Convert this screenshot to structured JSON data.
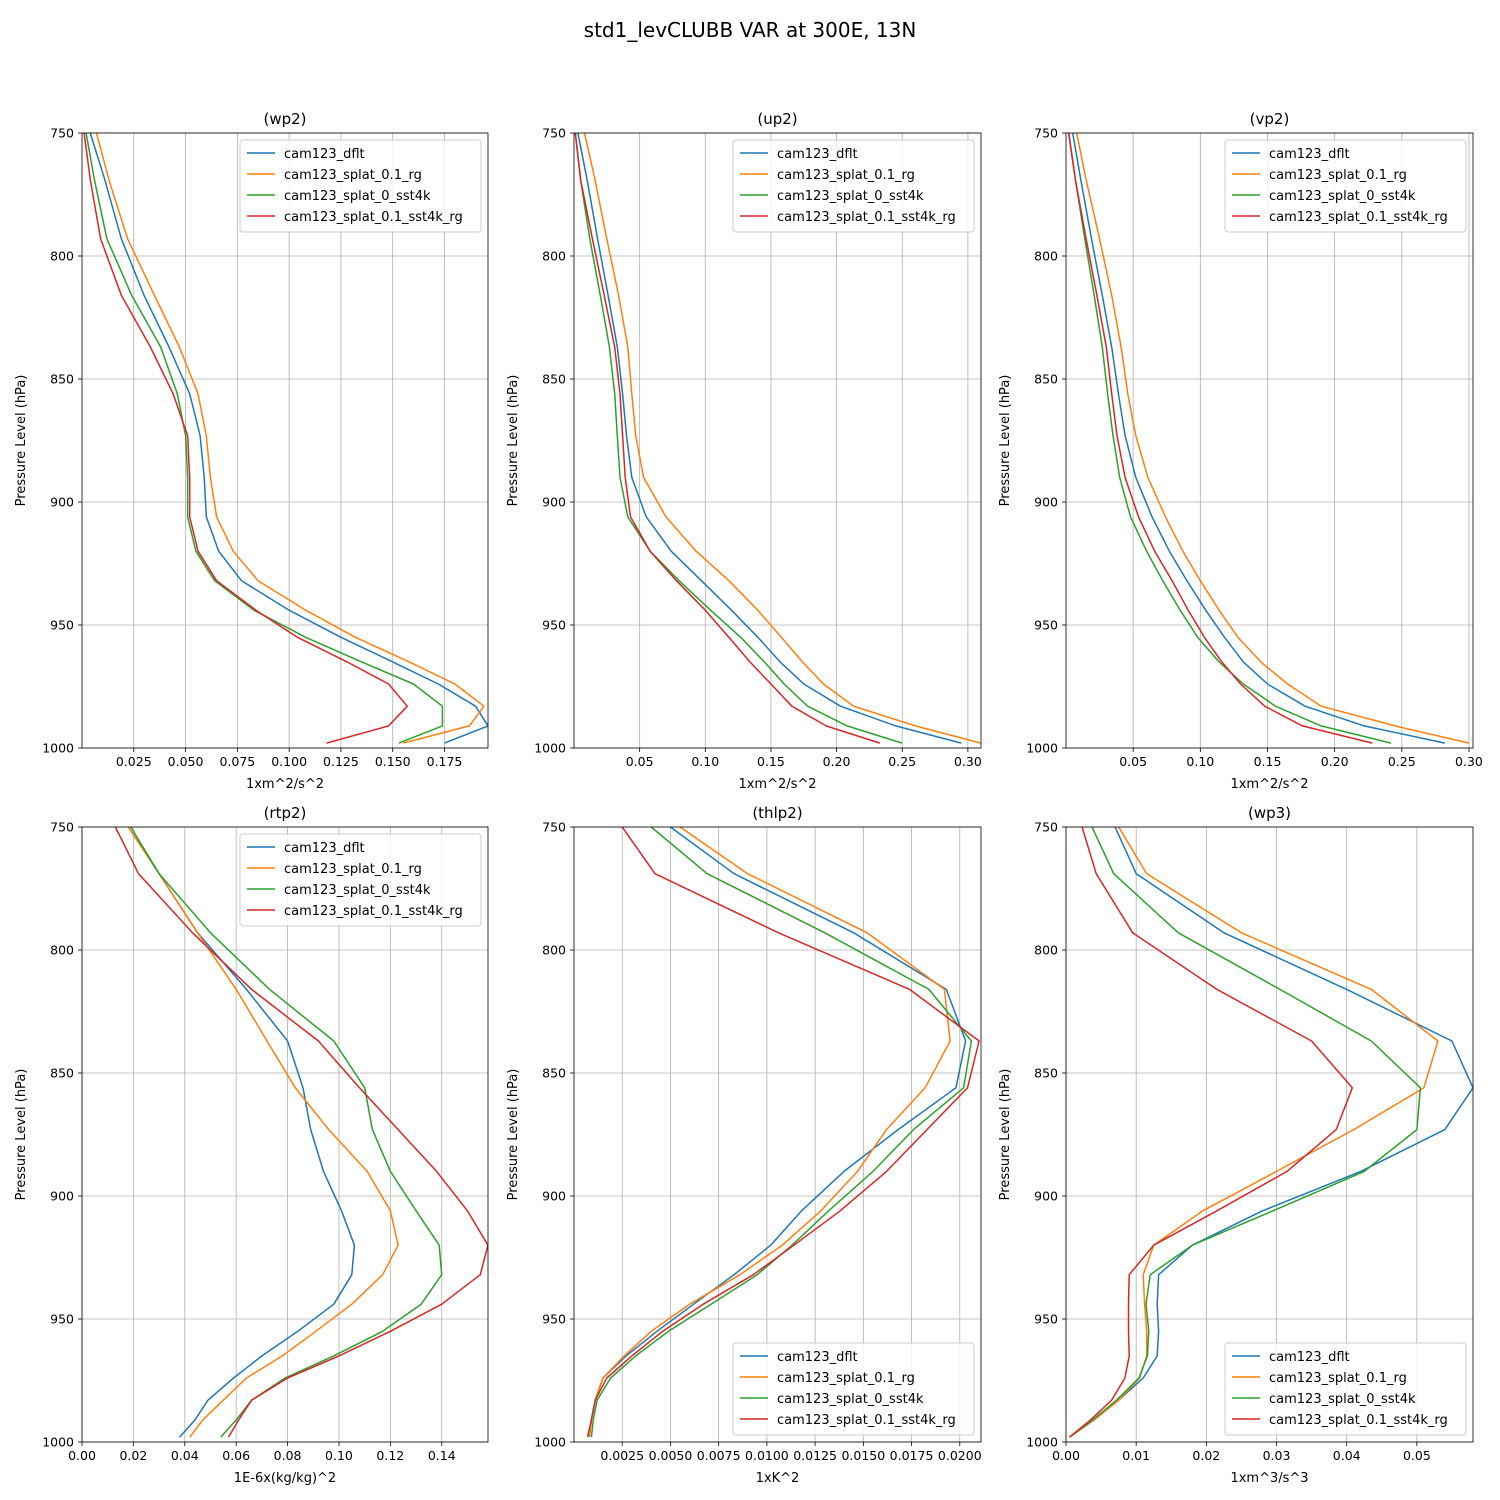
{
  "title": "std1_levCLUBB VAR at 300E, 13N",
  "colors": {
    "cam123_dflt": "#1f77b4",
    "cam123_splat_0.1_rg": "#ff7f0e",
    "cam123_splat_0_sst4k": "#2ca02c",
    "cam123_splat_0.1_sst4k_rg": "#d62728"
  },
  "chart_data": [
    {
      "type": "line",
      "title": "(wp2)",
      "xlabel": "1xm^2/s^2",
      "ylabel": "Pressure Level (hPa)",
      "xlim": [
        0.0,
        0.196
      ],
      "ylim": [
        1000,
        750
      ],
      "yticks": [
        750,
        800,
        850,
        900,
        950,
        1000
      ],
      "xticks": [
        0.025,
        0.05,
        0.075,
        0.1,
        0.125,
        0.15,
        0.175
      ],
      "xtick_labels": [
        "0.025",
        "0.050",
        "0.075",
        "0.100",
        "0.125",
        "0.150",
        "0.175"
      ],
      "grid": true,
      "legend_loc": "top-right",
      "levels": [
        750,
        769,
        793,
        816,
        837,
        856,
        873,
        890,
        906,
        920,
        932,
        944,
        955,
        965,
        974,
        983,
        991,
        998
      ],
      "series": [
        {
          "name": "cam123_dflt",
          "values": [
            0.004,
            0.011,
            0.019,
            0.03,
            0.042,
            0.052,
            0.057,
            0.059,
            0.06,
            0.066,
            0.077,
            0.1,
            0.125,
            0.15,
            0.172,
            0.19,
            0.196,
            0.175
          ]
        },
        {
          "name": "cam123_splat_0.1_rg",
          "values": [
            0.007,
            0.013,
            0.022,
            0.035,
            0.047,
            0.056,
            0.06,
            0.062,
            0.065,
            0.073,
            0.085,
            0.108,
            0.132,
            0.158,
            0.18,
            0.194,
            0.187,
            0.155
          ]
        },
        {
          "name": "cam123_splat_0_sst4k",
          "values": [
            0.002,
            0.006,
            0.012,
            0.024,
            0.038,
            0.046,
            0.05,
            0.051,
            0.051,
            0.055,
            0.064,
            0.083,
            0.108,
            0.135,
            0.16,
            0.174,
            0.174,
            0.153
          ]
        },
        {
          "name": "cam123_splat_0.1_sst4k_rg",
          "values": [
            0.001,
            0.004,
            0.009,
            0.019,
            0.033,
            0.044,
            0.051,
            0.052,
            0.052,
            0.056,
            0.065,
            0.084,
            0.104,
            0.128,
            0.148,
            0.157,
            0.148,
            0.118
          ]
        }
      ]
    },
    {
      "type": "line",
      "title": "(up2)",
      "xlabel": "1xm^2/s^2",
      "ylabel": "Pressure Level (hPa)",
      "xlim": [
        0.0,
        0.31
      ],
      "ylim": [
        1000,
        750
      ],
      "yticks": [
        750,
        800,
        850,
        900,
        950,
        1000
      ],
      "xticks": [
        0.05,
        0.1,
        0.15,
        0.2,
        0.25,
        0.3
      ],
      "xtick_labels": [
        "0.05",
        "0.10",
        "0.15",
        "0.20",
        "0.25",
        "0.30"
      ],
      "grid": true,
      "legend_loc": "top-right",
      "levels": [
        750,
        769,
        793,
        816,
        837,
        856,
        873,
        890,
        906,
        920,
        932,
        944,
        955,
        965,
        974,
        983,
        991,
        998
      ],
      "series": [
        {
          "name": "cam123_dflt",
          "values": [
            0.003,
            0.01,
            0.018,
            0.026,
            0.033,
            0.037,
            0.04,
            0.044,
            0.055,
            0.074,
            0.097,
            0.12,
            0.14,
            0.157,
            0.175,
            0.203,
            0.245,
            0.295
          ]
        },
        {
          "name": "cam123_splat_0.1_rg",
          "values": [
            0.008,
            0.016,
            0.025,
            0.034,
            0.041,
            0.044,
            0.047,
            0.053,
            0.07,
            0.093,
            0.118,
            0.14,
            0.158,
            0.174,
            0.19,
            0.213,
            0.26,
            0.31
          ]
        },
        {
          "name": "cam123_splat_0_sst4k",
          "values": [
            0.001,
            0.005,
            0.012,
            0.02,
            0.027,
            0.031,
            0.033,
            0.035,
            0.041,
            0.058,
            0.08,
            0.104,
            0.127,
            0.145,
            0.16,
            0.178,
            0.208,
            0.25
          ]
        },
        {
          "name": "cam123_splat_0.1_sst4k_rg",
          "values": [
            0.001,
            0.005,
            0.014,
            0.023,
            0.031,
            0.035,
            0.037,
            0.039,
            0.043,
            0.058,
            0.078,
            0.1,
            0.118,
            0.134,
            0.15,
            0.166,
            0.192,
            0.233
          ]
        }
      ]
    },
    {
      "type": "line",
      "title": "(vp2)",
      "xlabel": "1xm^2/s^2",
      "ylabel": "Pressure Level (hPa)",
      "xlim": [
        0.0,
        0.303
      ],
      "ylim": [
        1000,
        750
      ],
      "yticks": [
        750,
        800,
        850,
        900,
        950,
        1000
      ],
      "xticks": [
        0.05,
        0.1,
        0.15,
        0.2,
        0.25,
        0.3
      ],
      "xtick_labels": [
        "0.05",
        "0.10",
        "0.15",
        "0.20",
        "0.25",
        "0.30"
      ],
      "grid": true,
      "legend_loc": "top-right",
      "levels": [
        750,
        769,
        793,
        816,
        837,
        856,
        873,
        890,
        906,
        920,
        932,
        944,
        955,
        965,
        974,
        983,
        991,
        998
      ],
      "series": [
        {
          "name": "cam123_dflt",
          "values": [
            0.005,
            0.011,
            0.019,
            0.027,
            0.034,
            0.039,
            0.044,
            0.052,
            0.064,
            0.077,
            0.09,
            0.104,
            0.118,
            0.132,
            0.15,
            0.178,
            0.222,
            0.282
          ]
        },
        {
          "name": "cam123_splat_0.1_rg",
          "values": [
            0.008,
            0.015,
            0.025,
            0.034,
            0.041,
            0.046,
            0.052,
            0.061,
            0.074,
            0.087,
            0.1,
            0.114,
            0.128,
            0.145,
            0.165,
            0.19,
            0.245,
            0.3
          ]
        },
        {
          "name": "cam123_splat_0_sst4k",
          "values": [
            0.002,
            0.007,
            0.014,
            0.021,
            0.027,
            0.031,
            0.035,
            0.04,
            0.048,
            0.06,
            0.072,
            0.085,
            0.098,
            0.114,
            0.132,
            0.156,
            0.19,
            0.242
          ]
        },
        {
          "name": "cam123_splat_0.1_sst4k_rg",
          "values": [
            0.002,
            0.007,
            0.015,
            0.023,
            0.03,
            0.034,
            0.038,
            0.044,
            0.054,
            0.066,
            0.079,
            0.091,
            0.103,
            0.116,
            0.13,
            0.148,
            0.176,
            0.228
          ]
        }
      ]
    },
    {
      "type": "line",
      "title": "(rtp2)",
      "xlabel": "1E-6x(kg/kg)^2",
      "ylabel": "Pressure Level (hPa)",
      "xlim": [
        0.0,
        0.158
      ],
      "ylim": [
        1000,
        750
      ],
      "yticks": [
        750,
        800,
        850,
        900,
        950,
        1000
      ],
      "xticks": [
        0.0,
        0.02,
        0.04,
        0.06,
        0.08,
        0.1,
        0.12,
        0.14
      ],
      "xtick_labels": [
        "0.00",
        "0.02",
        "0.04",
        "0.06",
        "0.08",
        "0.10",
        "0.12",
        "0.14"
      ],
      "grid": true,
      "legend_loc": "top-right",
      "levels": [
        750,
        769,
        793,
        816,
        837,
        856,
        873,
        890,
        906,
        920,
        932,
        944,
        955,
        965,
        974,
        983,
        991,
        998
      ],
      "series": [
        {
          "name": "cam123_dflt",
          "values": [
            0.018,
            0.03,
            0.045,
            0.064,
            0.08,
            0.086,
            0.089,
            0.094,
            0.101,
            0.106,
            0.105,
            0.098,
            0.084,
            0.07,
            0.059,
            0.049,
            0.044,
            0.038
          ]
        },
        {
          "name": "cam123_splat_0.1_rg",
          "values": [
            0.018,
            0.03,
            0.045,
            0.06,
            0.072,
            0.083,
            0.096,
            0.111,
            0.12,
            0.123,
            0.117,
            0.105,
            0.091,
            0.078,
            0.064,
            0.055,
            0.047,
            0.042
          ]
        },
        {
          "name": "cam123_splat_0_sst4k",
          "values": [
            0.019,
            0.03,
            0.05,
            0.073,
            0.098,
            0.11,
            0.113,
            0.12,
            0.13,
            0.139,
            0.14,
            0.132,
            0.117,
            0.098,
            0.079,
            0.066,
            0.06,
            0.054
          ]
        },
        {
          "name": "cam123_splat_0.1_sst4k_rg",
          "values": [
            0.013,
            0.022,
            0.043,
            0.066,
            0.092,
            0.108,
            0.123,
            0.138,
            0.15,
            0.158,
            0.155,
            0.14,
            0.12,
            0.1,
            0.08,
            0.066,
            0.061,
            0.057
          ]
        }
      ]
    },
    {
      "type": "line",
      "title": "(thlp2)",
      "xlabel": "1xK^2",
      "ylabel": "Pressure Level (hPa)",
      "xlim": [
        0.0,
        0.0211
      ],
      "ylim": [
        1000,
        750
      ],
      "yticks": [
        750,
        800,
        850,
        900,
        950,
        1000
      ],
      "xticks": [
        0.0025,
        0.005,
        0.0075,
        0.01,
        0.0125,
        0.015,
        0.0175,
        0.02
      ],
      "xtick_labels": [
        "0.0025",
        "0.0050",
        "0.0075",
        "0.0100",
        "0.0125",
        "0.0150",
        "0.0175",
        "0.0200"
      ],
      "grid": true,
      "legend_loc": "bottom-right",
      "levels": [
        750,
        769,
        793,
        816,
        837,
        856,
        873,
        890,
        906,
        920,
        932,
        944,
        955,
        965,
        974,
        983,
        991,
        998
      ],
      "series": [
        {
          "name": "cam123_dflt",
          "values": [
            0.005,
            0.0083,
            0.0145,
            0.0193,
            0.0203,
            0.0198,
            0.0168,
            0.014,
            0.0118,
            0.0102,
            0.0083,
            0.0062,
            0.0043,
            0.0027,
            0.0015,
            0.0011,
            0.0009,
            0.0008
          ]
        },
        {
          "name": "cam123_splat_0.1_rg",
          "values": [
            0.0055,
            0.009,
            0.0152,
            0.0192,
            0.0195,
            0.0182,
            0.0162,
            0.0147,
            0.0128,
            0.0108,
            0.0086,
            0.006,
            0.004,
            0.0026,
            0.0015,
            0.0011,
            0.0009,
            0.0008
          ]
        },
        {
          "name": "cam123_splat_0_sst4k",
          "values": [
            0.004,
            0.0069,
            0.013,
            0.0184,
            0.0206,
            0.0202,
            0.0176,
            0.0155,
            0.0132,
            0.0113,
            0.0095,
            0.0071,
            0.0049,
            0.0032,
            0.0019,
            0.0012,
            0.001,
            0.0009
          ]
        },
        {
          "name": "cam123_splat_0.1_sst4k_rg",
          "values": [
            0.0025,
            0.0042,
            0.0106,
            0.0174,
            0.021,
            0.0204,
            0.0183,
            0.0162,
            0.0138,
            0.0114,
            0.0093,
            0.0067,
            0.0046,
            0.003,
            0.0017,
            0.0011,
            0.0009,
            0.0007
          ]
        }
      ]
    },
    {
      "type": "line",
      "title": "(wp3)",
      "xlabel": "1xm^3/s^3",
      "ylabel": "Pressure Level (hPa)",
      "xlim": [
        0.0,
        0.058
      ],
      "ylim": [
        1000,
        750
      ],
      "yticks": [
        750,
        800,
        850,
        900,
        950,
        1000
      ],
      "xticks": [
        0.0,
        0.01,
        0.02,
        0.03,
        0.04,
        0.05
      ],
      "xtick_labels": [
        "0.00",
        "0.01",
        "0.02",
        "0.03",
        "0.04",
        "0.05"
      ],
      "grid": true,
      "legend_loc": "bottom-right",
      "levels": [
        750,
        769,
        793,
        816,
        837,
        856,
        873,
        890,
        906,
        920,
        932,
        944,
        955,
        965,
        974,
        983,
        991,
        998
      ],
      "series": [
        {
          "name": "cam123_dflt",
          "values": [
            0.007,
            0.01,
            0.0225,
            0.04,
            0.055,
            0.058,
            0.054,
            0.042,
            0.028,
            0.018,
            0.0132,
            0.013,
            0.0132,
            0.013,
            0.011,
            0.0075,
            0.004,
            0.0005
          ]
        },
        {
          "name": "cam123_splat_0.1_rg",
          "values": [
            0.0075,
            0.0115,
            0.025,
            0.0435,
            0.053,
            0.051,
            0.041,
            0.03,
            0.0195,
            0.0125,
            0.011,
            0.0112,
            0.0115,
            0.0115,
            0.0105,
            0.0075,
            0.004,
            0.0005
          ]
        },
        {
          "name": "cam123_splat_0_sst4k",
          "values": [
            0.0037,
            0.0068,
            0.016,
            0.0305,
            0.0435,
            0.0505,
            0.05,
            0.0425,
            0.0295,
            0.018,
            0.012,
            0.0114,
            0.0118,
            0.0116,
            0.0104,
            0.0072,
            0.0038,
            0.0005
          ]
        },
        {
          "name": "cam123_splat_0.1_sst4k_rg",
          "values": [
            0.0023,
            0.0043,
            0.0095,
            0.0215,
            0.035,
            0.0408,
            0.0385,
            0.0315,
            0.0215,
            0.0125,
            0.009,
            0.0089,
            0.0089,
            0.009,
            0.0084,
            0.0065,
            0.0035,
            0.0005
          ]
        }
      ]
    }
  ]
}
